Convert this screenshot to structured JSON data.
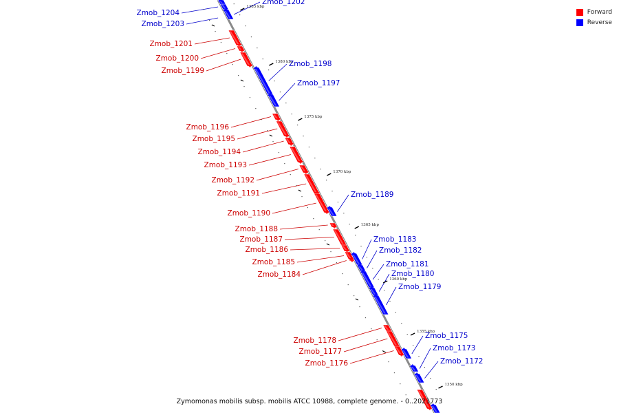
{
  "caption": "Zymomonas mobilis subsp. mobilis ATCC 10988, complete genome. - 0..2021773",
  "legend": {
    "forward_label": "Forward",
    "reverse_label": "Reverse",
    "forward_color": "#ff0000",
    "reverse_color": "#0000ff"
  },
  "colors": {
    "axis": "#8a8a8a",
    "forward_label": "#cc0000",
    "reverse_label": "#0000cc"
  },
  "ticks": [
    "1385 kbp",
    "1380 kbp",
    "1375 kbp",
    "1370 kbp",
    "1365 kbp",
    "1360 kbp",
    "1355 kbp",
    "1350 kbp"
  ],
  "forward_genes": [
    "Zmob_1201",
    "Zmob_1200",
    "Zmob_1199",
    "Zmob_1196",
    "Zmob_1195",
    "Zmob_1194",
    "Zmob_1193",
    "Zmob_1192",
    "Zmob_1191",
    "Zmob_1190",
    "Zmob_1188",
    "Zmob_1187",
    "Zmob_1186",
    "Zmob_1185",
    "Zmob_1184",
    "Zmob_1178",
    "Zmob_1177",
    "Zmob_1176"
  ],
  "reverse_genes": [
    "Zmob_1204",
    "Zmob_1203",
    "Zmob_1202",
    "Zmob_1198",
    "Zmob_1197",
    "Zmob_1189",
    "Zmob_1183",
    "Zmob_1182",
    "Zmob_1181",
    "Zmob_1180",
    "Zmob_1179",
    "Zmob_1175",
    "Zmob_1173",
    "Zmob_1172"
  ]
}
